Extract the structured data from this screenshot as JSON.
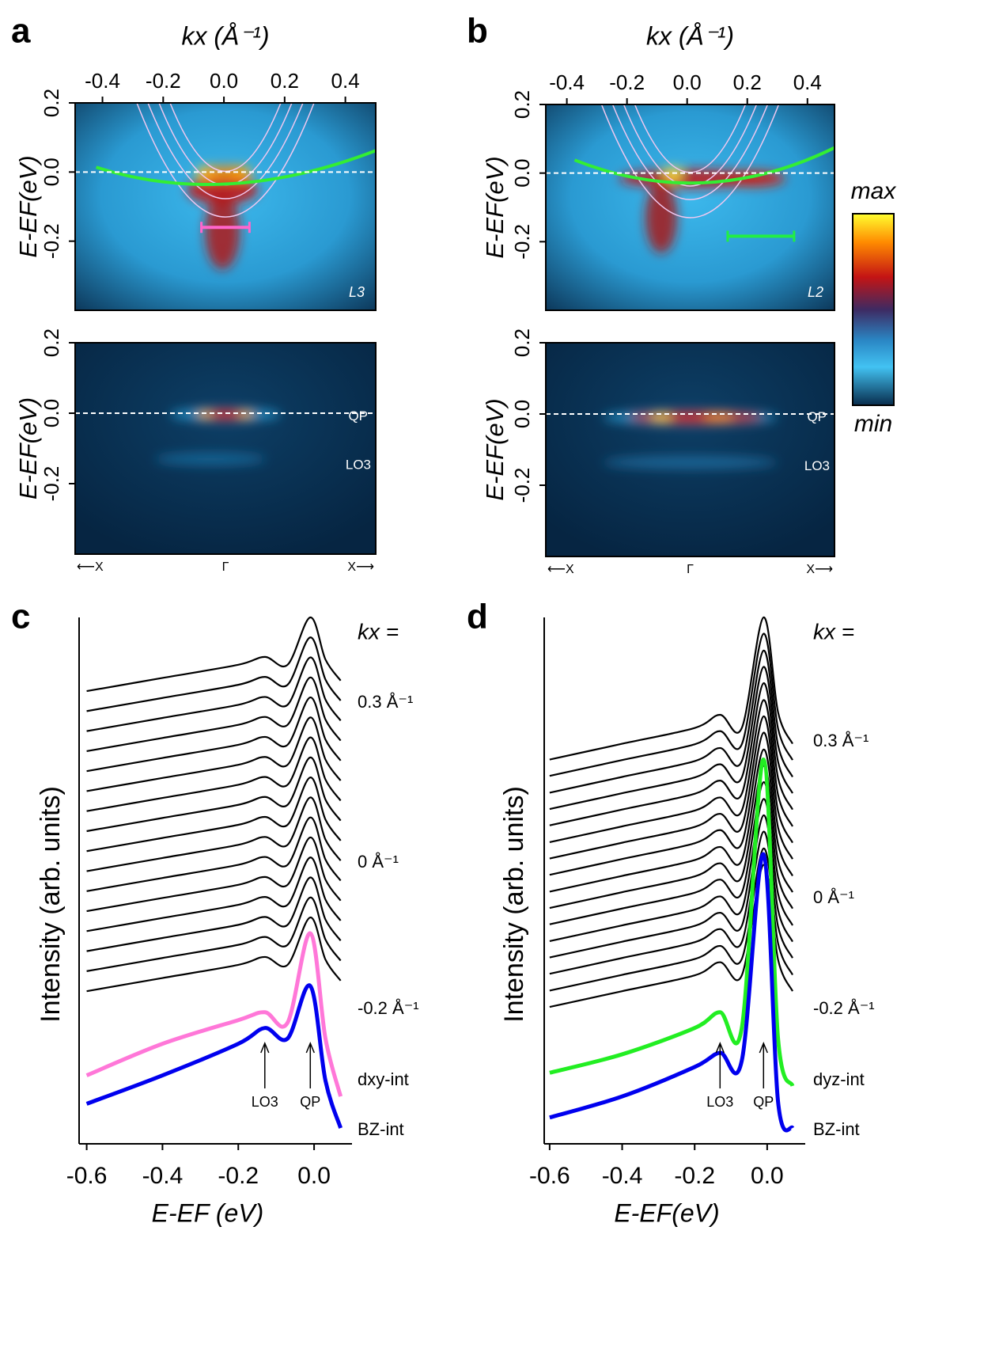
{
  "chart_data": [
    {
      "type": "heatmap",
      "panel_label": "a",
      "xlabel": "kx (Å⁻¹)",
      "ylabel": "E-EF(eV)",
      "xlim": [
        -0.49,
        0.5
      ],
      "ylim": [
        -0.4,
        0.2
      ],
      "xticks": [
        -0.4,
        -0.2,
        {
          "value": 0,
          "label": "0.0"
        },
        0.2,
        0.4
      ],
      "yticks": [
        0.2,
        {
          "value": 0,
          "label": "0.0"
        },
        -0.2
      ],
      "top_label": "L3",
      "bottom_labels": [
        "QP",
        "LO3"
      ],
      "bz_labels": [
        "⟵X",
        "Γ",
        "X⟶"
      ]
    },
    {
      "type": "heatmap",
      "panel_label": "b",
      "xlabel": "kx (Å⁻¹)",
      "ylabel": "E-EF(eV)",
      "xlim": [
        -0.47,
        0.49
      ],
      "ylim": [
        -0.4,
        0.2
      ],
      "xticks": [
        -0.4,
        -0.2,
        {
          "value": 0,
          "label": "0.0"
        },
        0.2,
        0.4
      ],
      "yticks": [
        0.2,
        {
          "value": 0,
          "label": "0.0"
        },
        -0.2
      ],
      "top_label": "L2",
      "bottom_labels": [
        "QP",
        "LO3"
      ],
      "bz_labels": [
        "⟵X",
        "Γ",
        "X⟶"
      ],
      "colorbar": {
        "max": "max",
        "min": "min"
      }
    },
    {
      "type": "line",
      "panel_label": "c",
      "xlabel": "E-EF (eV)",
      "ylabel": "Intensity (arb. units)",
      "xlim": [
        -0.62,
        0.1
      ],
      "ylim": [
        0,
        100
      ],
      "xticks": [
        -0.6,
        -0.4,
        -0.2,
        {
          "value": 0,
          "label": "0.0"
        }
      ],
      "x": [
        -0.6,
        -0.4,
        -0.2,
        -0.13,
        -0.07,
        -0.01,
        0.03,
        0.07
      ],
      "series": [
        {
          "color": "#000000",
          "values": [
            29,
            31.5,
            34,
            35.5,
            34,
            43,
            35,
            31
          ]
        },
        {
          "color": "#000000",
          "values": [
            32.8,
            35.3,
            37.8,
            39.3,
            37.8,
            46.8,
            38.8,
            34.8
          ]
        },
        {
          "color": "#000000",
          "values": [
            36.6,
            39.1,
            41.6,
            43.1,
            41.6,
            50.6,
            42.6,
            38.6
          ]
        },
        {
          "color": "#000000",
          "values": [
            40.4,
            42.9,
            45.4,
            46.9,
            45.4,
            54.4,
            46.4,
            42.4
          ]
        },
        {
          "color": "#000000",
          "values": [
            44.2,
            46.7,
            49.2,
            50.7,
            49.2,
            58.2,
            50.2,
            46.2
          ]
        },
        {
          "color": "#000000",
          "values": [
            48,
            50.5,
            53,
            54.5,
            53,
            62,
            54,
            50
          ]
        },
        {
          "color": "#000000",
          "values": [
            51.8,
            54.3,
            56.8,
            58.3,
            56.8,
            65.8,
            57.8,
            53.8
          ]
        },
        {
          "color": "#000000",
          "values": [
            55.6,
            58.1,
            60.6,
            62.1,
            60.6,
            69.6,
            61.6,
            57.6
          ]
        },
        {
          "color": "#000000",
          "values": [
            59.4,
            61.9,
            64.4,
            65.9,
            64.4,
            73.4,
            65.4,
            61.4
          ]
        },
        {
          "color": "#000000",
          "values": [
            63.2,
            65.7,
            68.2,
            69.7,
            68.2,
            77.2,
            69.2,
            65.2
          ]
        },
        {
          "color": "#000000",
          "values": [
            67,
            69.5,
            72,
            73.5,
            72,
            81,
            73,
            69
          ]
        },
        {
          "color": "#000000",
          "values": [
            70.8,
            73.3,
            75.8,
            77.3,
            75.8,
            84.8,
            76.8,
            72.8
          ]
        },
        {
          "color": "#000000",
          "values": [
            74.6,
            77.1,
            79.6,
            81.1,
            79.6,
            88.6,
            80.6,
            76.6
          ]
        },
        {
          "color": "#000000",
          "values": [
            78.4,
            80.9,
            83.4,
            84.9,
            83.4,
            92.4,
            84.4,
            80.4
          ]
        },
        {
          "color": "#000000",
          "values": [
            82.2,
            84.7,
            87.2,
            88.7,
            87.2,
            96.2,
            88.2,
            84.2
          ]
        },
        {
          "color": "#000000",
          "values": [
            86,
            88.5,
            91,
            92.5,
            91,
            100,
            92,
            88
          ]
        },
        {
          "name": "dxy-int",
          "color": "#ff77d8",
          "values": [
            13,
            19,
            23.5,
            25,
            23,
            40,
            20,
            9
          ]
        },
        {
          "name": "BZ-int",
          "color": "#0000ee",
          "values": [
            7.6,
            13,
            19,
            22,
            20,
            30,
            12,
            3
          ]
        }
      ],
      "annotations": [
        "kx =",
        "0.3 Å⁻¹",
        "0 Å⁻¹",
        "-0.2 Å⁻¹"
      ],
      "arrows": [
        {
          "label": "LO3",
          "x": -0.13
        },
        {
          "label": "QP",
          "x": -0.01
        }
      ]
    },
    {
      "type": "line",
      "panel_label": "d",
      "xlabel": "E-EF(eV)",
      "ylabel": "Intensity (arb. units)",
      "xlim": [
        -0.615,
        0.105
      ],
      "ylim": [
        0,
        100
      ],
      "xticks": [
        -0.6,
        -0.4,
        -0.2,
        {
          "value": 0,
          "label": "0.0"
        }
      ],
      "x": [
        -0.6,
        -0.4,
        -0.2,
        -0.13,
        -0.07,
        -0.01,
        0.03,
        0.07
      ],
      "series": [
        {
          "color": "#000000",
          "values": [
            26,
            29,
            32,
            34.5,
            32,
            53,
            35,
            29
          ]
        },
        {
          "color": "#000000",
          "values": [
            29.1,
            32.1,
            35.1,
            37.6,
            35.1,
            56.1,
            38.1,
            32.1
          ]
        },
        {
          "color": "#000000",
          "values": [
            32.3,
            35.3,
            38.3,
            40.8,
            38.3,
            59.3,
            41.3,
            35.3
          ]
        },
        {
          "color": "#000000",
          "values": [
            35.4,
            38.4,
            41.4,
            43.9,
            41.4,
            62.4,
            44.4,
            38.4
          ]
        },
        {
          "color": "#000000",
          "values": [
            38.5,
            41.5,
            44.5,
            47,
            44.5,
            65.5,
            47.5,
            41.5
          ]
        },
        {
          "color": "#000000",
          "values": [
            41.7,
            44.7,
            47.7,
            50.2,
            47.7,
            68.7,
            50.7,
            44.7
          ]
        },
        {
          "color": "#000000",
          "values": [
            44.8,
            47.8,
            50.8,
            53.3,
            50.8,
            71.8,
            53.8,
            47.8
          ]
        },
        {
          "color": "#000000",
          "values": [
            47.9,
            50.9,
            53.9,
            56.4,
            53.9,
            74.9,
            56.9,
            50.9
          ]
        },
        {
          "color": "#000000",
          "values": [
            51.1,
            54.1,
            57.1,
            59.6,
            57.1,
            78.1,
            60.1,
            54.1
          ]
        },
        {
          "color": "#000000",
          "values": [
            54.2,
            57.2,
            60.2,
            62.7,
            60.2,
            81.2,
            63.2,
            57.2
          ]
        },
        {
          "color": "#000000",
          "values": [
            57.3,
            60.3,
            63.3,
            65.8,
            63.3,
            84.3,
            66.3,
            60.3
          ]
        },
        {
          "color": "#000000",
          "values": [
            60.5,
            63.5,
            66.5,
            69,
            66.5,
            87.5,
            69.5,
            63.5
          ]
        },
        {
          "color": "#000000",
          "values": [
            63.6,
            66.6,
            69.6,
            72.1,
            69.6,
            90.6,
            72.6,
            66.6
          ]
        },
        {
          "color": "#000000",
          "values": [
            66.7,
            69.7,
            72.7,
            75.2,
            72.7,
            93.7,
            75.7,
            69.7
          ]
        },
        {
          "color": "#000000",
          "values": [
            69.9,
            72.9,
            75.9,
            78.4,
            75.9,
            96.9,
            78.9,
            72.9
          ]
        },
        {
          "color": "#000000",
          "values": [
            73,
            76,
            79,
            81.5,
            79,
            100,
            82,
            76
          ]
        },
        {
          "name": "dyz-int",
          "color": "#22ee22",
          "values": [
            13.5,
            17,
            22,
            25,
            22,
            73,
            20,
            11
          ]
        },
        {
          "name": "BZ-int",
          "color": "#0000ee",
          "values": [
            5,
            9,
            14.6,
            17.3,
            15.8,
            55,
            8,
            3
          ]
        }
      ],
      "annotations": [
        "kx =",
        "0.3 Å⁻¹",
        "0 Å⁻¹",
        "-0.2 Å⁻¹"
      ],
      "arrows": [
        {
          "label": "LO3",
          "x": -0.13
        },
        {
          "label": "QP",
          "x": -0.01
        }
      ]
    }
  ]
}
